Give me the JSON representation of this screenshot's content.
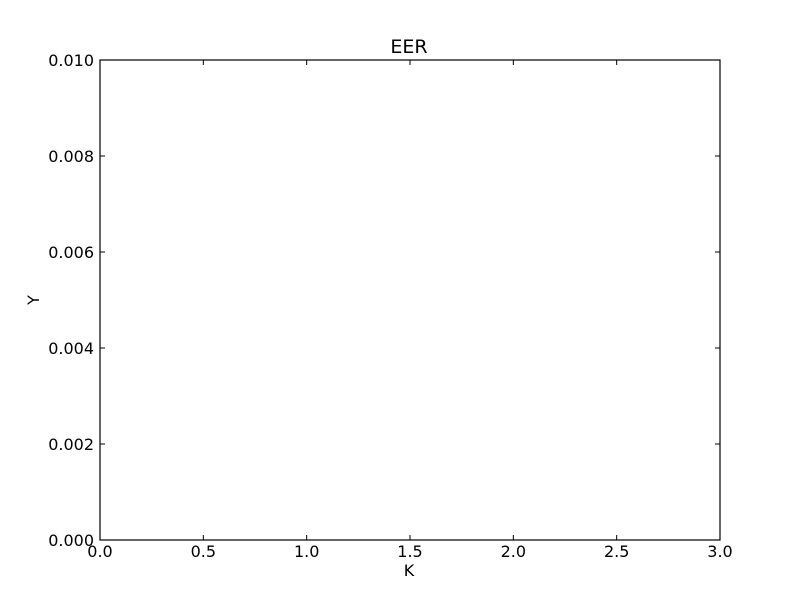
{
  "chart_data": {
    "type": "line",
    "title": "EER",
    "xlabel": "K",
    "ylabel": "Y",
    "xlim": [
      0.0,
      3.0
    ],
    "ylim": [
      0.0,
      0.01
    ],
    "xticks": [
      "0.0",
      "0.5",
      "1.0",
      "1.5",
      "2.0",
      "2.5",
      "3.0"
    ],
    "yticks": [
      "0.000",
      "0.002",
      "0.004",
      "0.006",
      "0.008",
      "0.010"
    ],
    "grid": false,
    "series": [],
    "colors": {
      "axes": "#000000",
      "background": "#ffffff"
    }
  }
}
